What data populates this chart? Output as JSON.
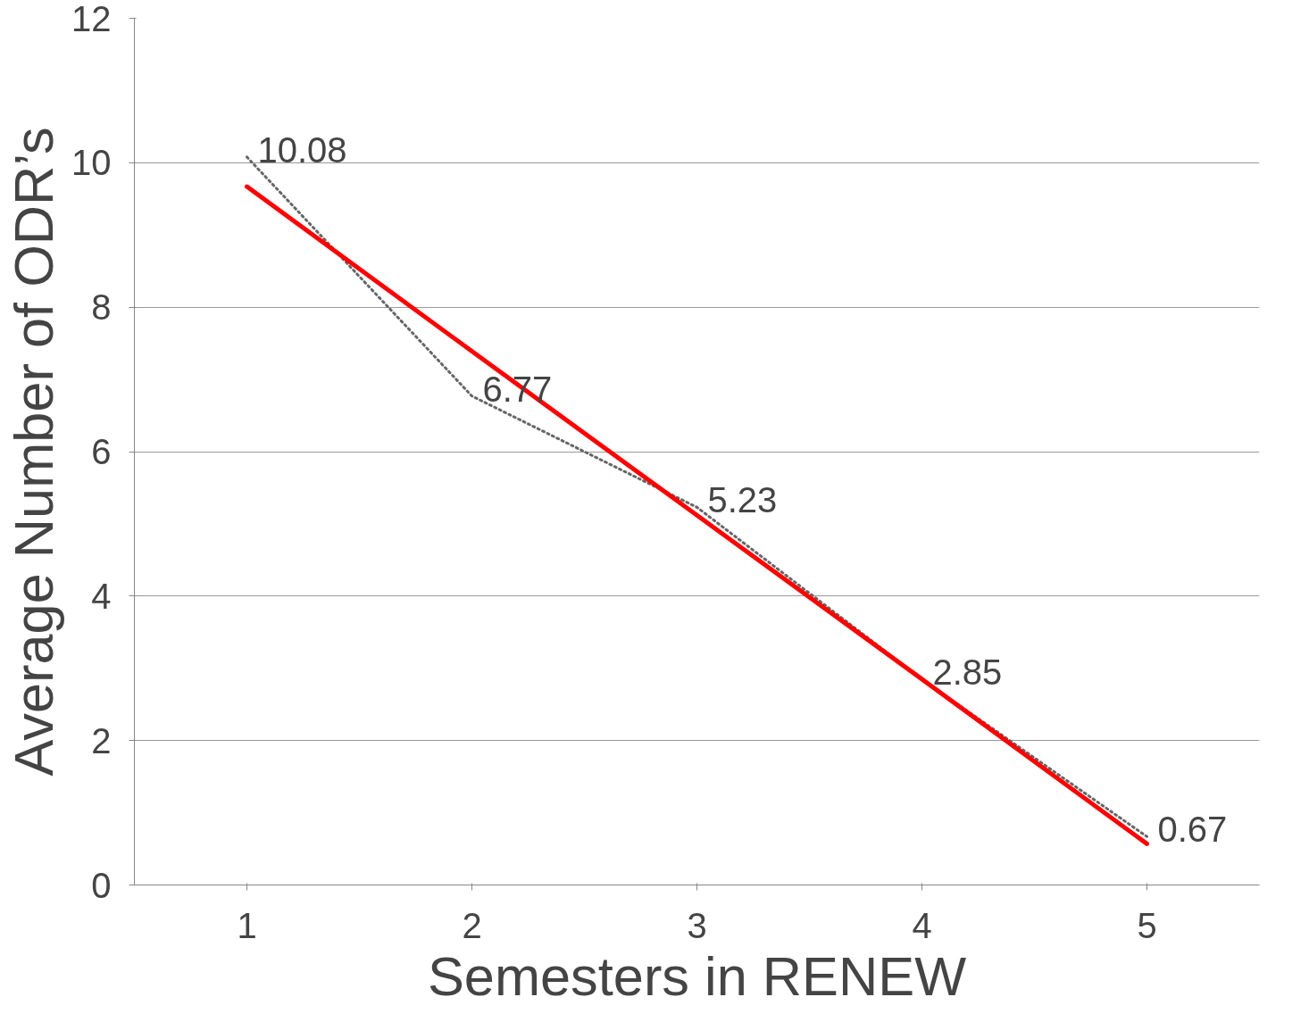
{
  "chart_data": {
    "type": "line",
    "xlabel": "Semesters in RENEW",
    "ylabel": "Average Number of ODR’s",
    "categories": [
      "1",
      "2",
      "3",
      "4",
      "5"
    ],
    "series": [
      {
        "color": "#666666",
        "values": [
          10.08,
          6.77,
          5.23,
          2.85,
          0.67
        ],
        "value_labels": [
          "10.08",
          "6.77",
          "5.23",
          "2.85",
          "0.67"
        ],
        "line_style": "dotted"
      },
      {
        "color": "#ff0000",
        "values": [
          9.67,
          7.39,
          5.12,
          2.85,
          0.57
        ],
        "line_style": "solid"
      }
    ],
    "ylim": [
      0,
      12
    ],
    "yticks": [
      0,
      2,
      4,
      6,
      8,
      10,
      12
    ],
    "grid": "y",
    "marker": "none"
  }
}
